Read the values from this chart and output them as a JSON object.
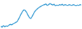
{
  "y": [
    30,
    28,
    32,
    29,
    31,
    30,
    33,
    35,
    34,
    36,
    38,
    40,
    42,
    48,
    55,
    62,
    68,
    72,
    70,
    65,
    58,
    52,
    50,
    55,
    62,
    68,
    72,
    75,
    78,
    80,
    82,
    84,
    85,
    87,
    83,
    85,
    88,
    86,
    84,
    86,
    82,
    84,
    83,
    85,
    84,
    86,
    83,
    85,
    84,
    83,
    85,
    84,
    83,
    85,
    84,
    82,
    84,
    83,
    85,
    84
  ],
  "line_color": "#4da6d8",
  "background_color": "#ffffff",
  "linewidth": 1.1
}
